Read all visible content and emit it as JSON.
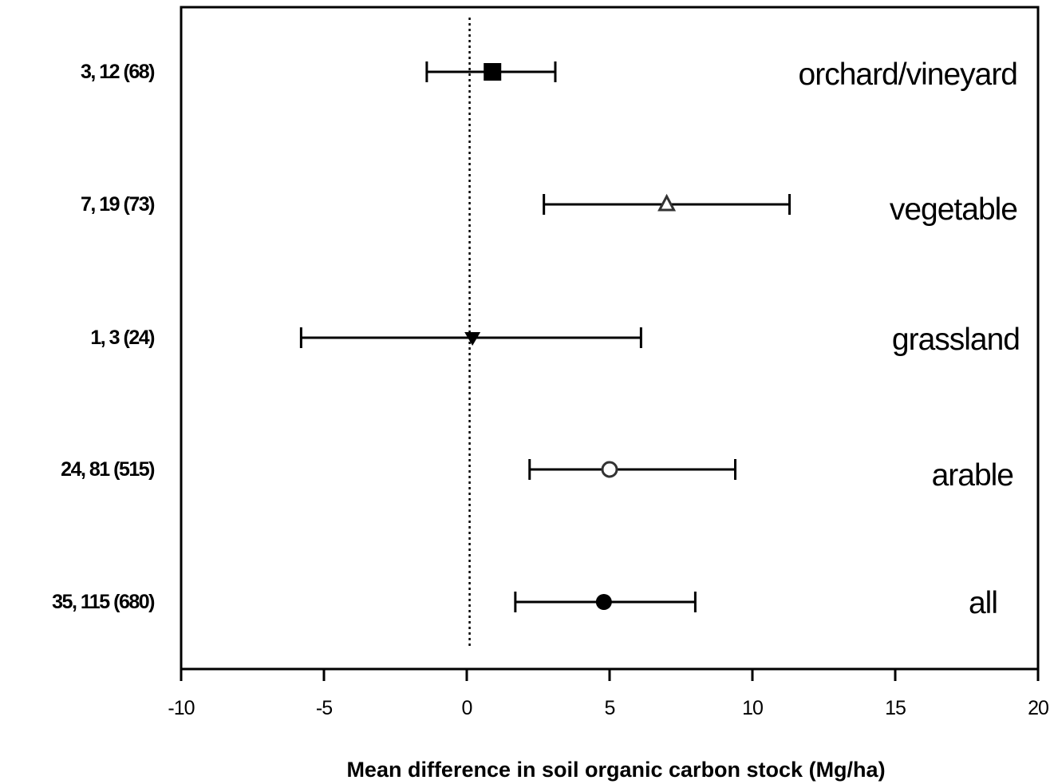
{
  "chart_data": {
    "type": "scatter",
    "subtype": "forest-plot",
    "title": "",
    "xlabel": "Mean difference in soil organic carbon stock (Mg/ha)",
    "ylabel": "",
    "xlim": [
      -10,
      20
    ],
    "xticks": [
      "-10",
      "-5",
      "0",
      "5",
      "10",
      "15",
      "20"
    ],
    "reference_line": {
      "x": 0.1,
      "style": "dotted"
    },
    "grid": false,
    "series": [
      {
        "name": "orchard/vineyard",
        "row_label": "3, 12 (68)",
        "mean": 0.9,
        "ci_low": -1.4,
        "ci_high": 3.1,
        "marker": "filled-square"
      },
      {
        "name": "vegetable",
        "row_label": "7, 19 (73)",
        "mean": 7.0,
        "ci_low": 2.7,
        "ci_high": 11.3,
        "marker": "open-triangle-up"
      },
      {
        "name": "grassland",
        "row_label": "1, 3 (24)",
        "mean": 0.2,
        "ci_low": -5.8,
        "ci_high": 6.1,
        "marker": "filled-triangle-down"
      },
      {
        "name": "arable",
        "row_label": "24, 81 (515)",
        "mean": 5.0,
        "ci_low": 2.2,
        "ci_high": 9.4,
        "marker": "open-circle"
      },
      {
        "name": "all",
        "row_label": "35, 115 (680)",
        "mean": 4.8,
        "ci_low": 1.7,
        "ci_high": 8.0,
        "marker": "filled-circle"
      }
    ]
  }
}
